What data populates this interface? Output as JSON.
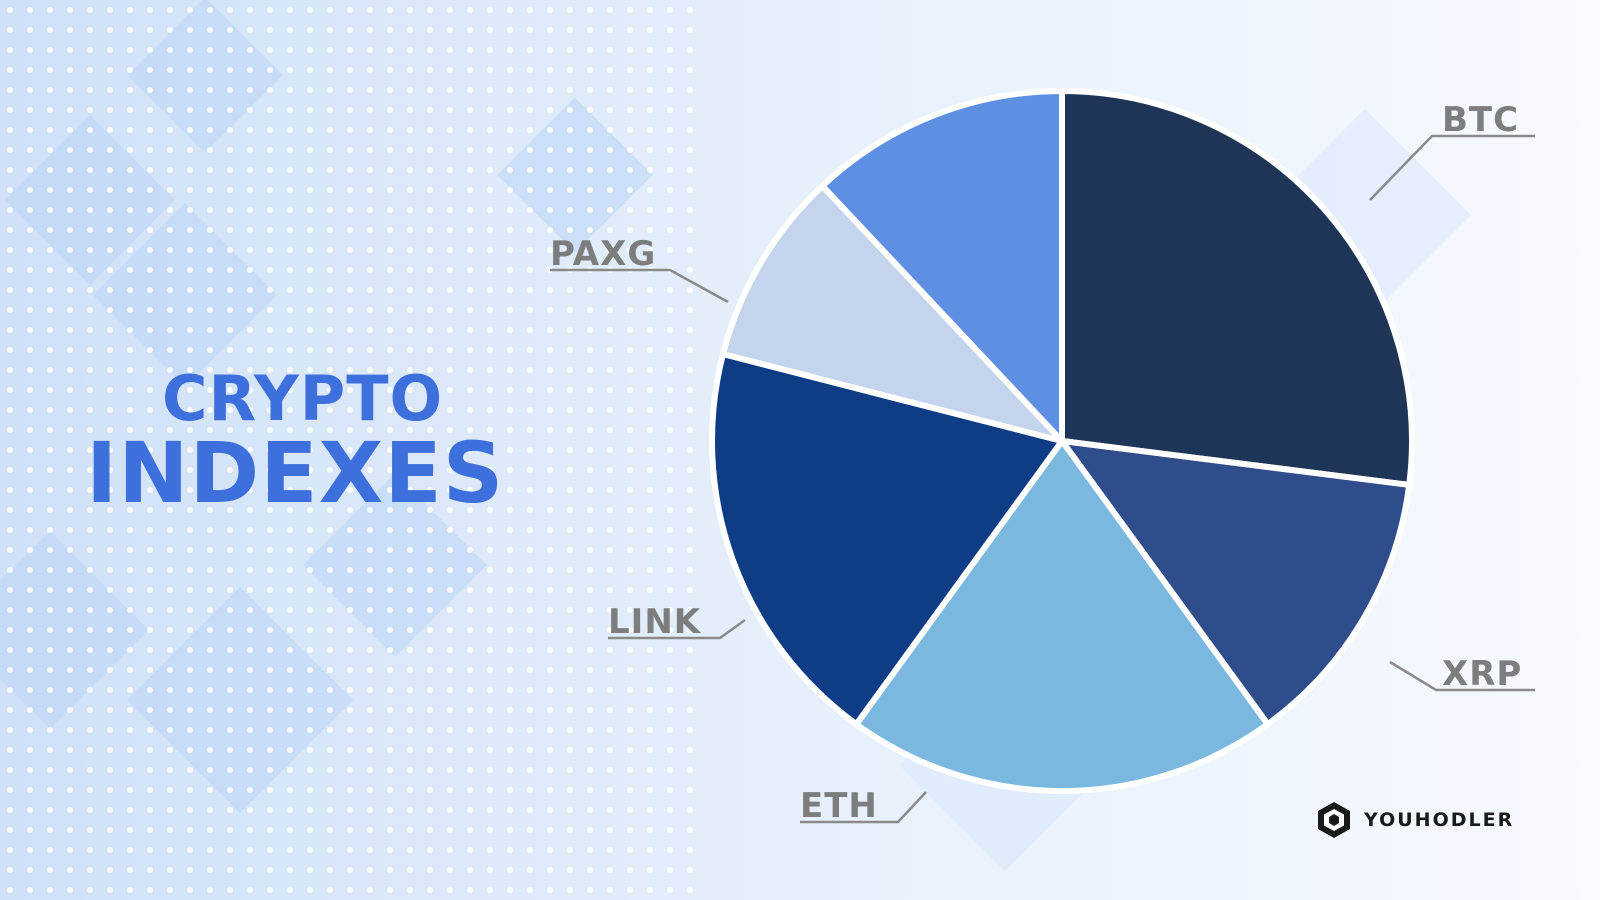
{
  "title": {
    "line1": "CRYPTO",
    "line2": "INDEXES"
  },
  "brand": {
    "name": "YOUHODLER",
    "icon": "youhodler-logo-icon"
  },
  "colors": {
    "title": "#3d6fdd",
    "label": "#7d7d7d",
    "background": "#f3f7fd"
  },
  "chart_data": {
    "type": "pie",
    "title": "CRYPTO INDEXES",
    "unit": "percent",
    "slices": [
      {
        "name": "BTC",
        "value": 27,
        "color": "#1f3558"
      },
      {
        "name": "XRP",
        "value": 13,
        "color": "#2f4d8a"
      },
      {
        "name": "ETH",
        "value": 20,
        "color": "#7bb8e0"
      },
      {
        "name": "LINK",
        "value": 19,
        "color": "#0f3d85"
      },
      {
        "name": "PAXG",
        "value": 9,
        "color": "#c4d4ec"
      },
      {
        "name": "",
        "value": 12,
        "color": "#5f8fe2"
      }
    ]
  }
}
